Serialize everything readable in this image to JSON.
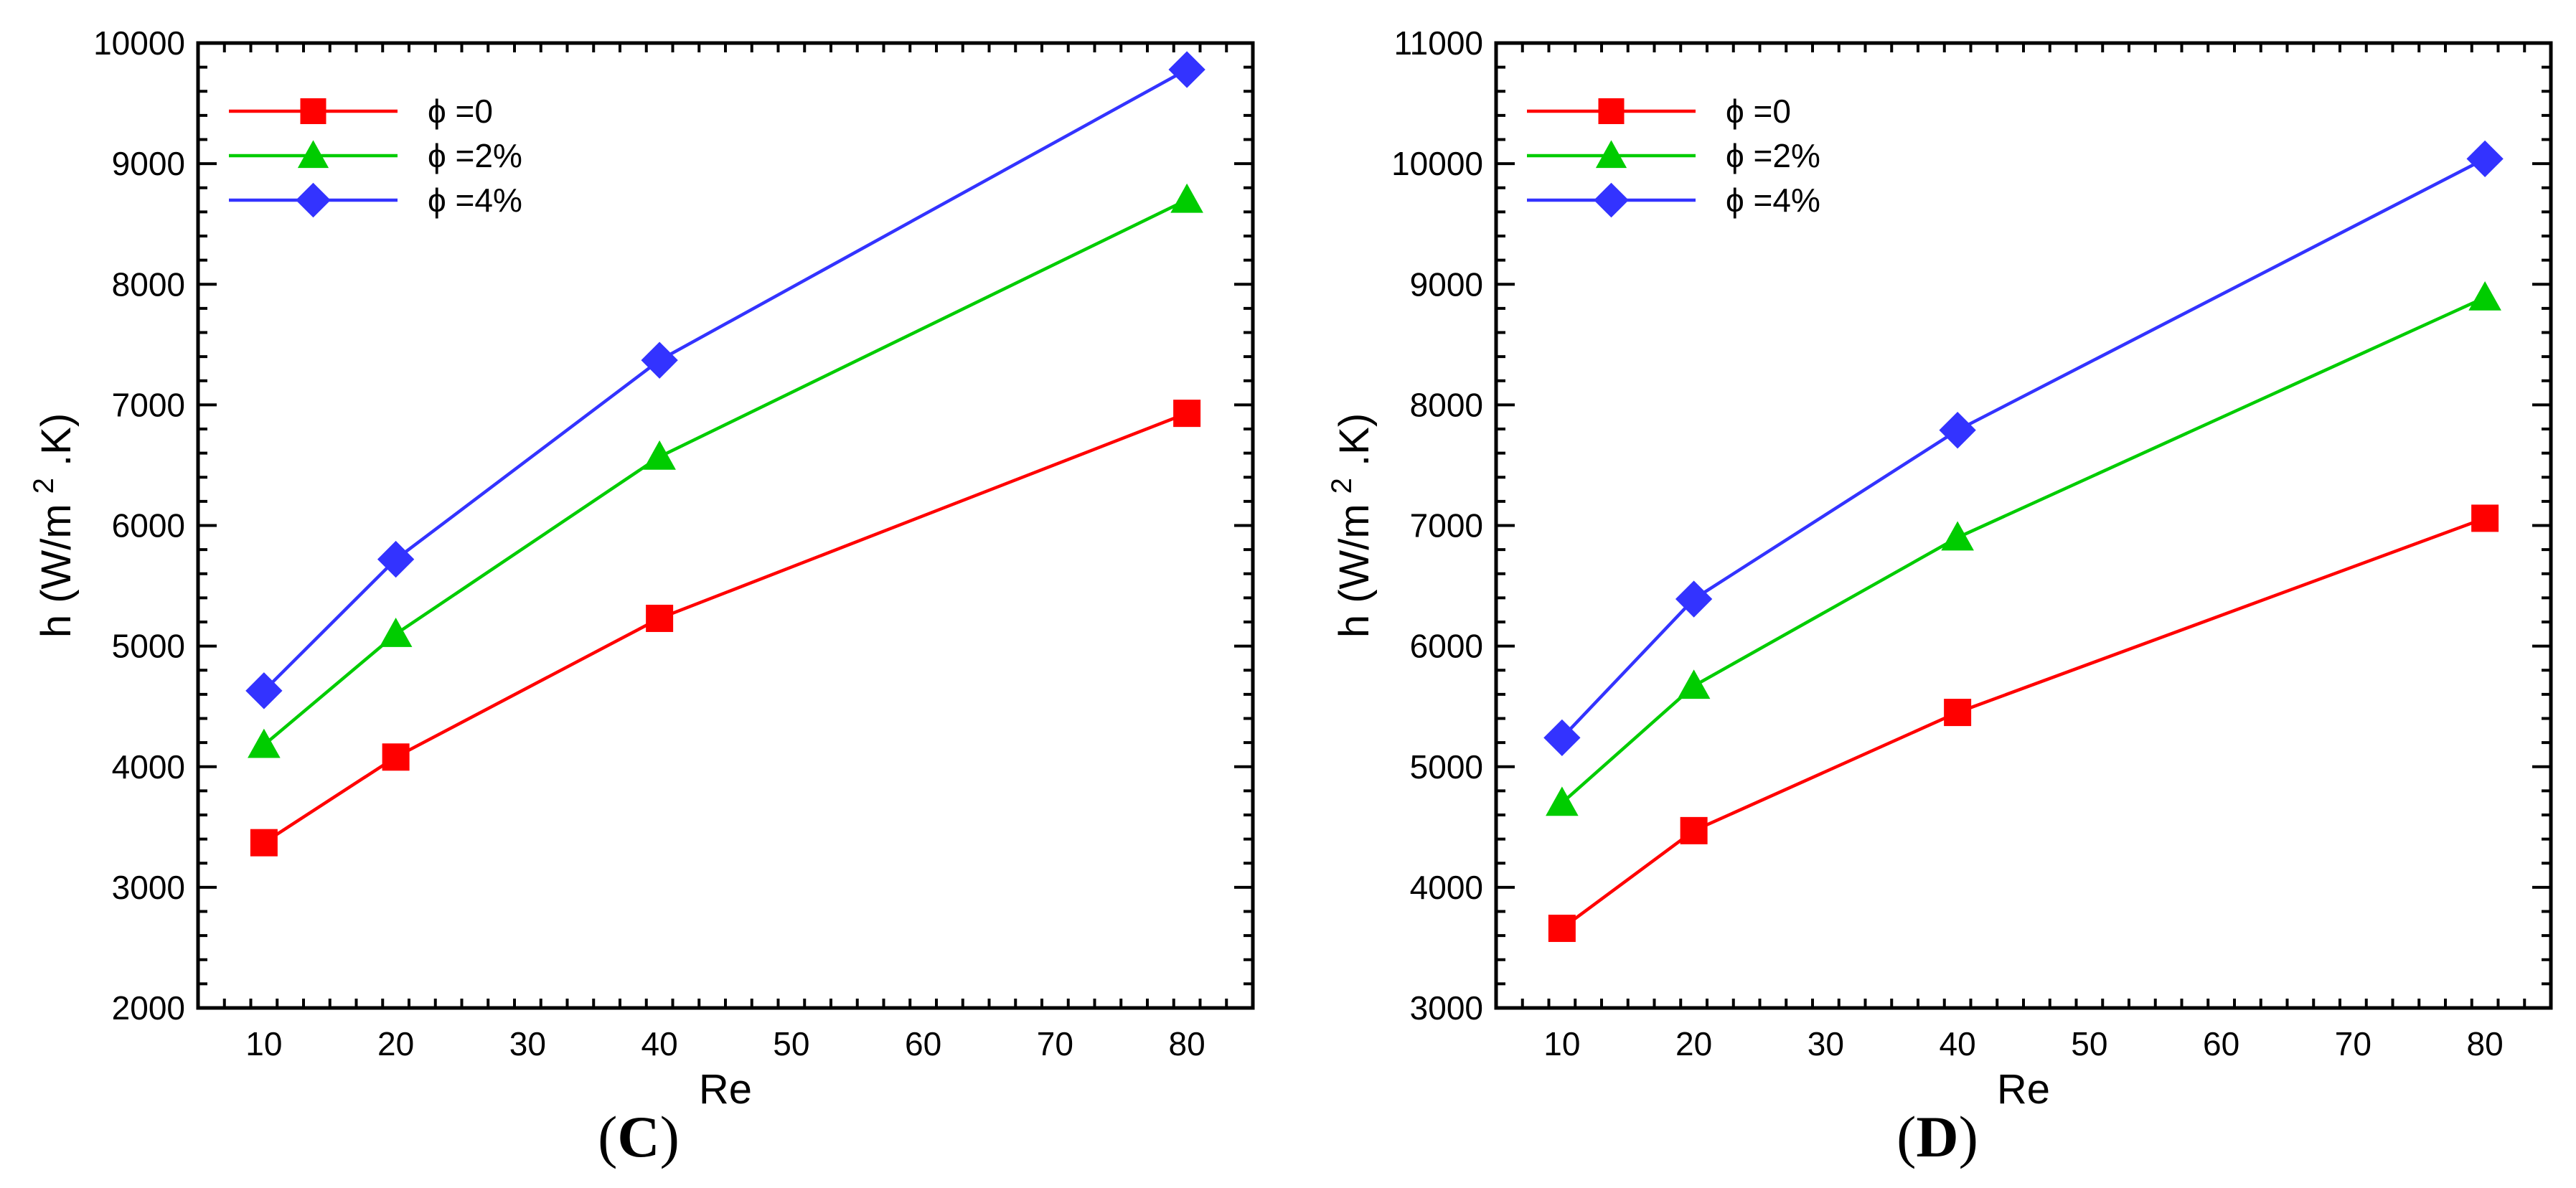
{
  "chart_data": [
    {
      "type": "line",
      "panel_label": "C",
      "xlabel": "Re",
      "ylabel_prefix": "h (W/m",
      "ylabel_exp": "2",
      "ylabel_suffix": " .K)",
      "xlim": [
        5,
        85
      ],
      "ylim": [
        2000,
        10000
      ],
      "xticks": [
        10,
        20,
        30,
        40,
        50,
        60,
        70,
        80
      ],
      "yticks": [
        2000,
        3000,
        4000,
        5000,
        6000,
        7000,
        8000,
        9000,
        10000
      ],
      "x": [
        10,
        20,
        40,
        80
      ],
      "legend_position": "top-left",
      "series": [
        {
          "name": "ϕ =0",
          "color": "#ff0000",
          "marker": "square",
          "values": [
            3370,
            4080,
            5230,
            6930
          ]
        },
        {
          "name": "ϕ =2%",
          "color": "#00cc00",
          "marker": "triangle",
          "values": [
            4180,
            5100,
            6570,
            8700
          ]
        },
        {
          "name": "ϕ =4%",
          "color": "#3333ff",
          "marker": "diamond",
          "values": [
            4630,
            5720,
            7370,
            9780
          ]
        }
      ]
    },
    {
      "type": "line",
      "panel_label": "D",
      "xlabel": "Re",
      "ylabel_prefix": "h (W/m",
      "ylabel_exp": "2",
      "ylabel_suffix": " .K)",
      "xlim": [
        5,
        85
      ],
      "ylim": [
        3000,
        11000
      ],
      "xticks": [
        10,
        20,
        30,
        40,
        50,
        60,
        70,
        80
      ],
      "yticks": [
        3000,
        4000,
        5000,
        6000,
        7000,
        8000,
        9000,
        10000,
        11000
      ],
      "x": [
        10,
        20,
        40,
        80
      ],
      "legend_position": "top-left",
      "series": [
        {
          "name": "ϕ =0",
          "color": "#ff0000",
          "marker": "square",
          "values": [
            3660,
            4470,
            5450,
            7060
          ]
        },
        {
          "name": "ϕ =2%",
          "color": "#00cc00",
          "marker": "triangle",
          "values": [
            4700,
            5670,
            6900,
            8890
          ]
        },
        {
          "name": "ϕ =4%",
          "color": "#3333ff",
          "marker": "diamond",
          "values": [
            5240,
            6390,
            7790,
            10040
          ]
        }
      ]
    }
  ]
}
